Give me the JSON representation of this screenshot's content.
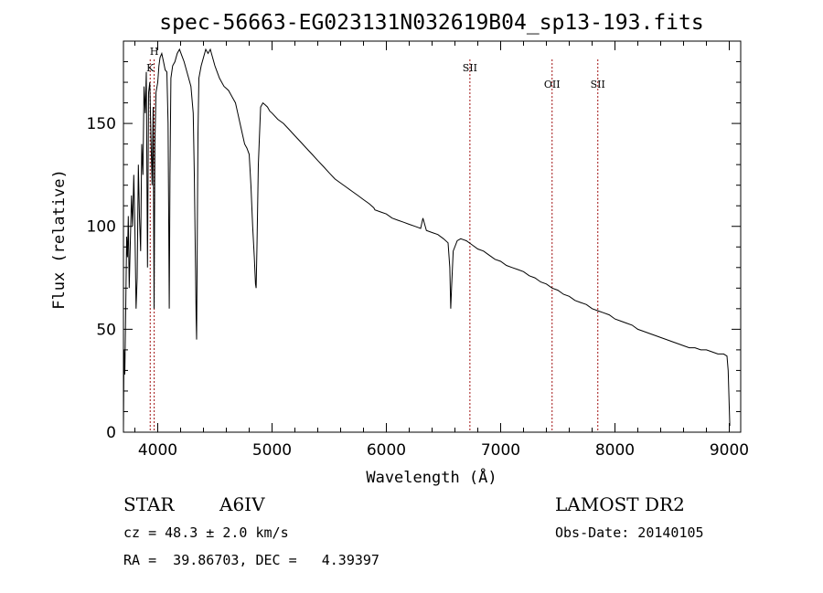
{
  "chart_data": {
    "type": "line",
    "title": "spec-56663-EG023131N032619B04_sp13-193.fits",
    "xlabel": "Wavelength (Å)",
    "ylabel": "Flux (relative)",
    "xlim": [
      3700,
      9100
    ],
    "ylim": [
      0,
      190
    ],
    "xticks": [
      4000,
      5000,
      6000,
      7000,
      8000,
      9000
    ],
    "yticks": [
      0,
      50,
      100,
      150
    ],
    "series": [
      {
        "x": [
          3700,
          3705,
          3712,
          3720,
          3728,
          3735,
          3742,
          3750,
          3760,
          3770,
          3780,
          3790,
          3800,
          3810,
          3820,
          3830,
          3840,
          3850,
          3860,
          3870,
          3880,
          3890,
          3900,
          3910,
          3920,
          3930,
          3940,
          3950,
          3960,
          3968,
          3975,
          3985,
          4000,
          4010,
          4020,
          4035,
          4050,
          4065,
          4080,
          4090,
          4095,
          4101,
          4107,
          4115,
          4130,
          4150,
          4170,
          4190,
          4210,
          4230,
          4250,
          4270,
          4290,
          4310,
          4320,
          4330,
          4336,
          4340,
          4345,
          4352,
          4360,
          4380,
          4400,
          4420,
          4440,
          4460,
          4480,
          4500,
          4520,
          4540,
          4560,
          4580,
          4600,
          4620,
          4640,
          4660,
          4680,
          4700,
          4720,
          4740,
          4760,
          4780,
          4800,
          4815,
          4830,
          4845,
          4855,
          4861,
          4868,
          4880,
          4900,
          4920,
          4940,
          4960,
          4980,
          5000,
          5050,
          5100,
          5150,
          5200,
          5250,
          5300,
          5350,
          5400,
          5450,
          5500,
          5550,
          5600,
          5650,
          5700,
          5750,
          5800,
          5850,
          5890,
          5900,
          5950,
          6000,
          6050,
          6100,
          6150,
          6200,
          6250,
          6300,
          6320,
          6350,
          6400,
          6450,
          6500,
          6540,
          6555,
          6563,
          6570,
          6585,
          6620,
          6650,
          6700,
          6750,
          6800,
          6850,
          6900,
          6950,
          7000,
          7050,
          7100,
          7150,
          7200,
          7250,
          7300,
          7350,
          7400,
          7450,
          7500,
          7550,
          7600,
          7650,
          7700,
          7750,
          7800,
          7850,
          7900,
          7950,
          8000,
          8050,
          8100,
          8150,
          8200,
          8250,
          8300,
          8350,
          8400,
          8450,
          8500,
          8550,
          8600,
          8650,
          8700,
          8750,
          8800,
          8850,
          8900,
          8950,
          8980,
          8990,
          8998,
          9005
        ],
        "y": [
          2,
          40,
          28,
          60,
          95,
          85,
          105,
          70,
          92,
          115,
          100,
          125,
          100,
          60,
          75,
          130,
          105,
          88,
          140,
          125,
          168,
          155,
          175,
          80,
          165,
          170,
          145,
          120,
          158,
          60,
          140,
          165,
          170,
          178,
          182,
          184,
          180,
          176,
          175,
          150,
          110,
          60,
          125,
          172,
          178,
          180,
          184,
          186,
          183,
          180,
          176,
          172,
          168,
          155,
          125,
          80,
          55,
          45,
          85,
          145,
          172,
          178,
          182,
          186,
          184,
          186,
          182,
          178,
          175,
          172,
          170,
          168,
          167,
          166,
          164,
          162,
          160,
          155,
          150,
          145,
          140,
          138,
          135,
          120,
          100,
          85,
          72,
          70,
          90,
          130,
          158,
          160,
          159,
          158,
          156,
          155,
          152,
          150,
          147,
          144,
          141,
          138,
          135,
          132,
          129,
          126,
          123,
          121,
          119,
          117,
          115,
          113,
          111,
          109,
          108,
          107,
          106,
          104,
          103,
          102,
          101,
          100,
          99,
          104,
          98,
          97,
          96,
          94,
          92,
          80,
          60,
          70,
          88,
          93,
          94,
          93,
          91,
          89,
          88,
          86,
          84,
          83,
          81,
          80,
          79,
          78,
          76,
          75,
          73,
          72,
          70,
          69,
          67,
          66,
          64,
          63,
          62,
          60,
          59,
          58,
          57,
          55,
          54,
          53,
          52,
          50,
          49,
          48,
          47,
          46,
          45,
          44,
          43,
          42,
          41,
          41,
          40,
          40,
          39,
          38,
          38,
          37,
          30,
          15,
          3
        ]
      }
    ],
    "lines": [
      {
        "x": 3934,
        "label": "K"
      },
      {
        "x": 3969,
        "label": "H"
      },
      {
        "x": 6731,
        "label": "SII"
      },
      {
        "x": 7450,
        "label": "OII"
      },
      {
        "x": 7850,
        "label": "SII"
      }
    ],
    "grid": false,
    "line_color": "#000000",
    "marker_color": "#a01010"
  },
  "info": {
    "class": "STAR",
    "subclass": "A6IV",
    "survey": "LAMOST DR2",
    "cz": "cz = 48.3 ± 2.0 km/s",
    "obsdate": "Obs-Date: 20140105",
    "radec": "RA =  39.86703, DEC =   4.39397"
  }
}
